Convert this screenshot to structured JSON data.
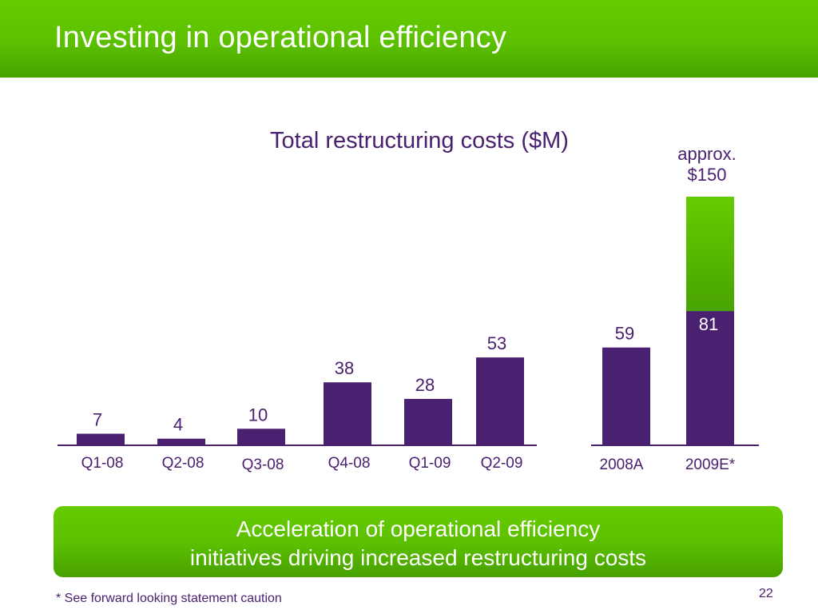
{
  "slide": {
    "title": "Investing in operational efficiency",
    "callout_line1": "Acceleration of operational efficiency",
    "callout_line2": "initiatives driving increased restructuring costs",
    "footnote": "* See forward looking statement caution",
    "page_number": "22"
  },
  "colors": {
    "bar": "#4a2170",
    "green": "#5cc000",
    "label_text": "#4a2170",
    "axis": "#4a2170"
  },
  "chart_data": [
    {
      "type": "bar",
      "title": "Total restructuring costs ($M)",
      "categories": [
        "Q1-08",
        "Q2-08",
        "Q3-08",
        "Q4-08",
        "Q1-09",
        "Q2-09"
      ],
      "values": [
        7,
        4,
        10,
        38,
        28,
        53
      ],
      "data_labels": [
        "7",
        "4",
        "10",
        "38",
        "28",
        "53"
      ],
      "xlabel": "",
      "ylabel": "",
      "ylim": [
        0,
        150
      ],
      "grid": false,
      "legend": "none"
    },
    {
      "type": "bar",
      "stacked": true,
      "categories": [
        "2008A",
        "2009E*"
      ],
      "series": [
        {
          "values": [
            59,
            81
          ],
          "data_labels": [
            "59",
            "81"
          ]
        },
        {
          "values": [
            0,
            69
          ]
        }
      ],
      "totals": [
        59,
        150
      ],
      "annotation_line1": "approx.",
      "annotation_line2": "$150",
      "xlabel": "",
      "ylabel": "",
      "ylim": [
        0,
        150
      ],
      "grid": false,
      "legend": "none"
    }
  ]
}
